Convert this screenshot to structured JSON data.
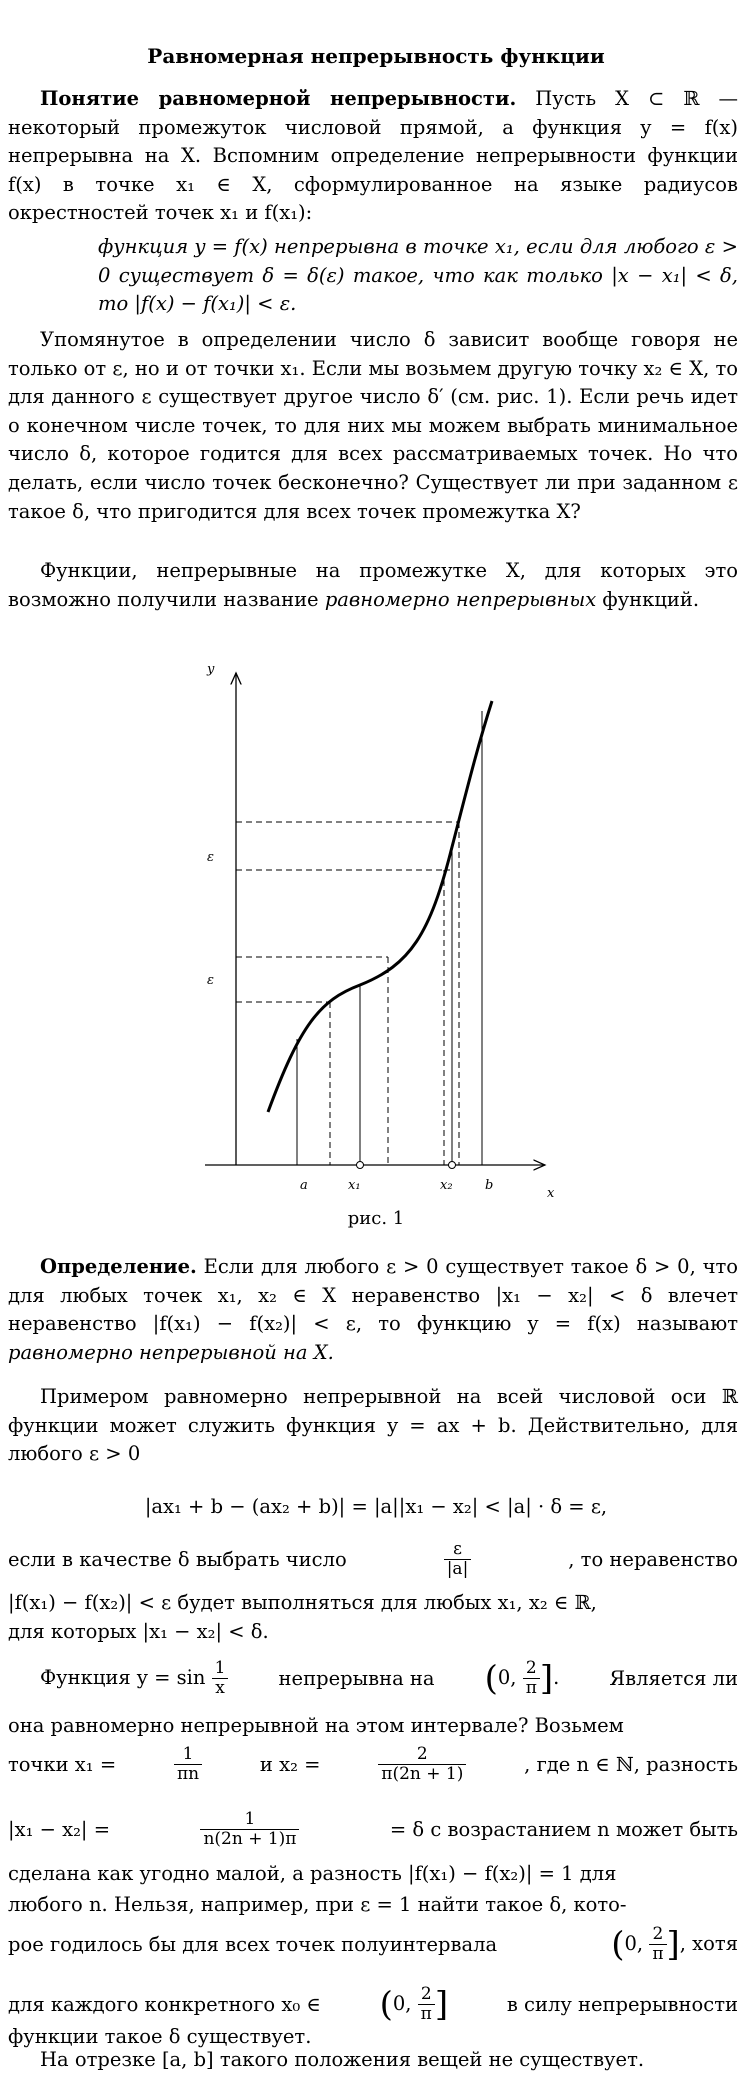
{
  "title": "Равномерная непрерывность функции",
  "p1_head": "Понятие равномерной непрерывности.",
  "p1_body": "Пусть X ⊂ ℝ — некоторый промежуток числовой прямой, а функция y = f(x) непрерывна на X. Вспомним определение непрерывности функции f(x) в точке x₁ ∈ X, сформулированное на языке радиусов окрестностей точек x₁ и f(x₁):",
  "quote": "функция y = f(x) непрерывна в точке x₁, если для любого ε > 0 существует δ = δ(ε) такое, что как только |x − x₁| < δ, то |f(x) − f(x₁)| < ε.",
  "p2": "Упомянутое в определении число δ зависит вообще говоря не только от ε, но и от точки x₁. Если мы возьмем другую точку x₂ ∈ X, то для данного ε существует другое число δ′ (см. рис. 1). Если речь идет о конечном числе точек, то для них мы можем выбрать минимальное число δ, которое годится для всех рассматриваемых точек. Но что делать, если число точек бесконечно? Существует ли при заданном ε такое δ, что пригодится для всех точек промежутка X?",
  "p3_a": "Функции, непрерывные на промежутке X, для которых это возможно получили название ",
  "p3_it": "равномерно непрерывных",
  "p3_b": " функций.",
  "figure": {
    "y_label": "y",
    "x_label": "x",
    "eps_label": "ε",
    "tick_a": "a",
    "tick_x1": "x₁",
    "tick_x2": "x₂",
    "tick_b": "b",
    "caption": "рис. 1"
  },
  "def_head": "Определение.",
  "def_body": "Если для любого ε > 0 существует такое δ > 0, что для любых точек x₁, x₂ ∈ X неравенство |x₁ − x₂| < δ влечет неравенство |f(x₁) − f(x₂)| < ε, то функцию y = f(x) называют ",
  "def_it": "равномерно непрерывной на X.",
  "p4": "Примером равномерно непрерывной на всей числовой оси ℝ функции может служить функция y = ax + b. Действительно, для любого ε > 0",
  "eq1": "|ax₁ + b − (ax₂ + b)| = |a||x₁ − x₂| < |a| · δ = ε,",
  "p5_a": "если в качестве δ выбрать число",
  "p5_frac_num": "ε",
  "p5_frac_den": "|a|",
  "p5_b": ", то неравенство",
  "p5_c": "|f(x₁) − f(x₂)| < ε будет выполняться для любых x₁, x₂ ∈ ℝ,",
  "p5_d": "для которых |x₁ − x₂| < δ.",
  "p6_a": "Функция y = sin",
  "p6_f_num": "1",
  "p6_f_den": "x",
  "p6_b": "непрерывна на",
  "p6_int_num": "2",
  "p6_int_den": "π",
  "p6_c": "Является ли",
  "p6_line2": "она равномерно непрерывной на этом интервале? Возьмем",
  "p6_pt_a": "точки x₁ =",
  "p6_pt_f1_num": "1",
  "p6_pt_f1_den": "πn",
  "p6_pt_b": "и x₂ =",
  "p6_pt_f2_num": "2",
  "p6_pt_f2_den": "π(2n + 1)",
  "p6_pt_c": ", где n ∈ ℕ, разность",
  "p6_d_a": "|x₁ − x₂| =",
  "p6_d_f_num": "1",
  "p6_d_f_den": "n(2n + 1)π",
  "p6_d_b": "= δ с возрастанием n может быть",
  "p6_line5": "сделана как угодно малой, а разность |f(x₁) − f(x₂)| = 1 для",
  "p6_line6": "любого n. Нельзя, например, при ε = 1 найти такое δ, кото-",
  "p6_l7_a": "рое годилось бы для всех точек полуинтервала",
  "p6_l7_b": ", хотя",
  "p6_l8_a": "для каждого конкретного x₀ ∈",
  "p6_l8_b": "в силу непрерывности",
  "p6_line9": "функции такое δ существует.",
  "p7": "На отрезке [a, b] такого положения вещей не существует."
}
